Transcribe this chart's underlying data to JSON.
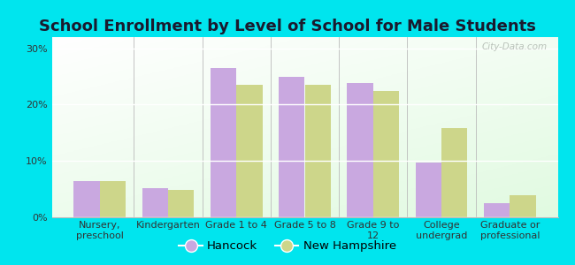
{
  "title": "School Enrollment by Level of School for Male Students",
  "categories": [
    "Nursery,\npreschool",
    "Kindergarten",
    "Grade 1 to 4",
    "Grade 5 to 8",
    "Grade 9 to\n12",
    "College\nundergrad",
    "Graduate or\nprofessional"
  ],
  "hancock_values": [
    6.5,
    5.2,
    26.5,
    25.0,
    23.8,
    9.8,
    2.5
  ],
  "nh_values": [
    6.5,
    4.8,
    23.5,
    23.5,
    22.5,
    15.8,
    4.0
  ],
  "hancock_color": "#c9a8e0",
  "nh_color": "#cdd68a",
  "background_color": "#00e5ee",
  "ylim": [
    0,
    32
  ],
  "yticks": [
    0,
    10,
    20,
    30
  ],
  "ytick_labels": [
    "0%",
    "10%",
    "20%",
    "30%"
  ],
  "legend_hancock": "Hancock",
  "legend_nh": "New Hampshire",
  "bar_width": 0.38,
  "title_fontsize": 13,
  "tick_fontsize": 8,
  "legend_fontsize": 9.5,
  "watermark": "City-Data.com"
}
